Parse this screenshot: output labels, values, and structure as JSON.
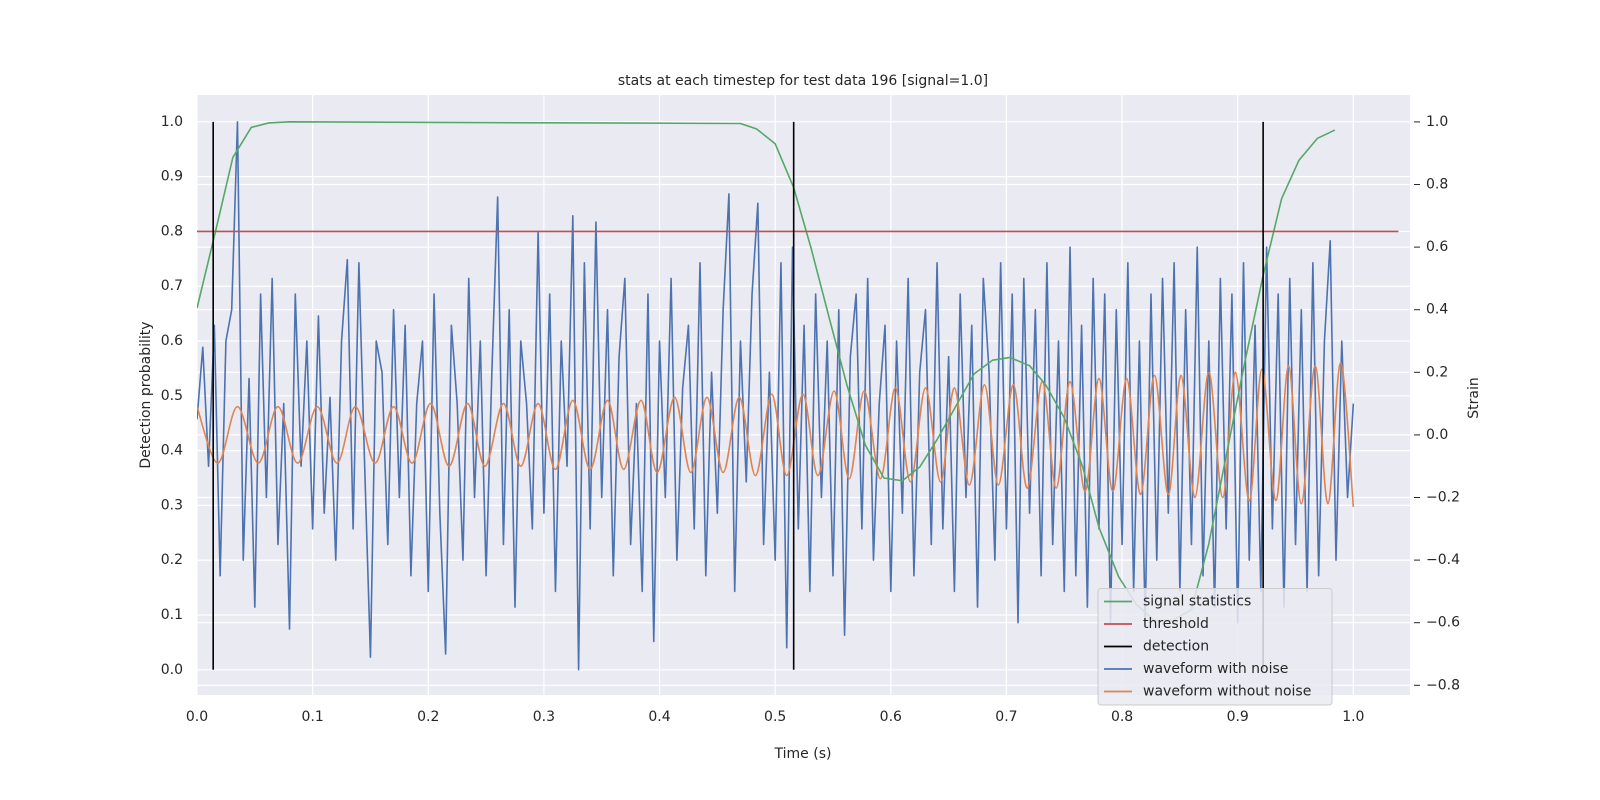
{
  "chart_data": {
    "type": "line",
    "title": "stats at each timestep for test data 196 [signal=1.0]",
    "xlabel": "Time (s)",
    "ylabel": "Detection probability",
    "y2label": "Strain",
    "xlim": [
      0,
      1.049
    ],
    "ylim": [
      -0.046,
      1.049
    ],
    "y2lim": [
      -0.831,
      1.086
    ],
    "xticks": [
      {
        "value": 0,
        "label": "0.0"
      },
      0.1,
      0.2,
      0.3,
      0.4,
      0.5,
      0.6,
      0.7,
      0.8,
      0.9,
      {
        "value": 1,
        "label": "1.0"
      }
    ],
    "yticks": [
      {
        "value": 0,
        "label": "0.0"
      },
      0.1,
      0.2,
      0.3,
      0.4,
      0.5,
      0.6,
      0.7,
      0.8,
      0.9,
      {
        "value": 1,
        "label": "1.0"
      }
    ],
    "y2ticks": [
      {
        "value": -0.8,
        "label": "−0.8"
      },
      {
        "value": -0.6,
        "label": "−0.6"
      },
      {
        "value": -0.4,
        "label": "−0.4"
      },
      {
        "value": -0.2,
        "label": "−0.2"
      },
      {
        "value": 0,
        "label": "0.0"
      },
      0.2,
      0.4,
      0.6,
      0.8,
      {
        "value": 1,
        "label": "1.0"
      }
    ],
    "grid": true,
    "legend": "lower right",
    "series": [
      {
        "name": "signal statistics",
        "color": "#55a868",
        "x": [
          0,
          0.016,
          0.031,
          0.047,
          0.062,
          0.08,
          0.47,
          0.484,
          0.5,
          0.516,
          0.531,
          0.547,
          0.562,
          0.578,
          0.594,
          0.61,
          0.625,
          0.64,
          0.656,
          0.672,
          0.688,
          0.703,
          0.72,
          0.734,
          0.75,
          0.766,
          0.78,
          0.797,
          0.812,
          0.828,
          0.844,
          0.86,
          0.875,
          0.89,
          0.906,
          0.922,
          0.938,
          0.953,
          0.969,
          0.984
        ],
        "values": [
          0.66,
          0.8,
          0.935,
          0.99,
          0.998,
          1.0,
          0.997,
          0.987,
          0.96,
          0.88,
          0.77,
          0.64,
          0.52,
          0.41,
          0.35,
          0.345,
          0.37,
          0.42,
          0.48,
          0.54,
          0.565,
          0.57,
          0.555,
          0.52,
          0.46,
          0.37,
          0.26,
          0.17,
          0.12,
          0.09,
          0.09,
          0.11,
          0.23,
          0.39,
          0.56,
          0.72,
          0.86,
          0.93,
          0.97,
          0.985
        ]
      },
      {
        "name": "threshold",
        "color": "#c44e52",
        "x": [
          0,
          1.039
        ],
        "values": [
          0.8,
          0.8
        ]
      },
      {
        "name": "detection",
        "color": "#000000",
        "style": "vlines",
        "x": [
          0.014,
          0.516,
          0.922
        ],
        "values": [
          1,
          1,
          1
        ]
      },
      {
        "name": "waveform with noise",
        "color": "#4c72b0",
        "axis": "y2",
        "x": [
          0,
          0.005,
          0.01,
          0.015,
          0.02,
          0.025,
          0.03,
          0.035,
          0.04,
          0.045,
          0.05,
          0.055,
          0.06,
          0.065,
          0.07,
          0.075,
          0.08,
          0.085,
          0.09,
          0.095,
          0.1,
          0.105,
          0.11,
          0.115,
          0.12,
          0.125,
          0.13,
          0.135,
          0.14,
          0.145,
          0.15,
          0.155,
          0.16,
          0.165,
          0.17,
          0.175,
          0.18,
          0.185,
          0.19,
          0.195,
          0.2,
          0.205,
          0.21,
          0.215,
          0.22,
          0.225,
          0.23,
          0.235,
          0.24,
          0.245,
          0.25,
          0.255,
          0.26,
          0.265,
          0.27,
          0.275,
          0.28,
          0.285,
          0.29,
          0.295,
          0.3,
          0.305,
          0.31,
          0.315,
          0.32,
          0.325,
          0.33,
          0.335,
          0.34,
          0.345,
          0.35,
          0.355,
          0.36,
          0.365,
          0.37,
          0.375,
          0.38,
          0.385,
          0.39,
          0.395,
          0.4,
          0.405,
          0.41,
          0.415,
          0.42,
          0.425,
          0.43,
          0.435,
          0.44,
          0.445,
          0.45,
          0.455,
          0.46,
          0.465,
          0.47,
          0.475,
          0.48,
          0.485,
          0.49,
          0.495,
          0.5,
          0.505,
          0.51,
          0.515,
          0.52,
          0.525,
          0.53,
          0.535,
          0.54,
          0.545,
          0.55,
          0.555,
          0.56,
          0.565,
          0.57,
          0.575,
          0.58,
          0.585,
          0.59,
          0.595,
          0.6,
          0.605,
          0.61,
          0.615,
          0.62,
          0.625,
          0.63,
          0.635,
          0.64,
          0.645,
          0.65,
          0.655,
          0.66,
          0.665,
          0.67,
          0.675,
          0.68,
          0.685,
          0.69,
          0.695,
          0.7,
          0.705,
          0.71,
          0.715,
          0.72,
          0.725,
          0.73,
          0.735,
          0.74,
          0.745,
          0.75,
          0.755,
          0.76,
          0.765,
          0.77,
          0.775,
          0.78,
          0.785,
          0.79,
          0.795,
          0.8,
          0.805,
          0.81,
          0.815,
          0.82,
          0.825,
          0.83,
          0.835,
          0.84,
          0.845,
          0.85,
          0.855,
          0.86,
          0.865,
          0.87,
          0.875,
          0.88,
          0.885,
          0.89,
          0.895,
          0.9,
          0.905,
          0.91,
          0.915,
          0.92,
          0.925,
          0.93,
          0.935,
          0.94,
          0.945,
          0.95,
          0.955,
          0.96,
          0.965,
          0.97,
          0.975,
          0.98,
          0.985,
          0.99,
          0.995,
          1.0
        ],
        "values": [
          0.05,
          0.28,
          -0.1,
          0.35,
          -0.45,
          0.3,
          0.4,
          1.0,
          -0.4,
          0.18,
          -0.55,
          0.45,
          -0.2,
          0.5,
          -0.35,
          0.1,
          -0.62,
          0.45,
          -0.1,
          0.3,
          -0.3,
          0.38,
          -0.25,
          0.12,
          -0.4,
          0.3,
          0.56,
          -0.3,
          0.55,
          -0.1,
          -0.71,
          0.3,
          0.2,
          -0.35,
          0.4,
          -0.2,
          0.35,
          -0.45,
          0.1,
          0.3,
          -0.5,
          0.45,
          -0.25,
          -0.7,
          0.35,
          0.1,
          -0.4,
          0.5,
          -0.2,
          0.3,
          -0.45,
          0.2,
          0.76,
          -0.35,
          0.4,
          -0.55,
          0.3,
          0.1,
          -0.3,
          0.65,
          -0.25,
          0.45,
          -0.5,
          0.3,
          -0.1,
          0.7,
          -0.75,
          0.55,
          -0.3,
          0.68,
          -0.2,
          0.4,
          -0.45,
          0.25,
          0.5,
          -0.35,
          0.1,
          -0.5,
          0.45,
          -0.66,
          0.3,
          -0.2,
          0.5,
          -0.4,
          0.15,
          0.35,
          -0.3,
          0.55,
          -0.45,
          0.2,
          -0.25,
          0.4,
          0.77,
          -0.5,
          0.3,
          -0.15,
          0.45,
          0.74,
          -0.35,
          0.2,
          -0.4,
          0.55,
          -0.68,
          0.6,
          -0.3,
          0.35,
          -0.5,
          0.45,
          -0.2,
          0.3,
          -0.45,
          0.4,
          -0.64,
          0.25,
          0.45,
          -0.3,
          0.5,
          -0.4,
          0.1,
          0.35,
          -0.5,
          0.3,
          -0.25,
          0.5,
          -0.45,
          0.2,
          0.4,
          -0.35,
          0.55,
          -0.3,
          0.25,
          -0.5,
          0.45,
          -0.2,
          0.35,
          -0.55,
          0.5,
          0.2,
          -0.4,
          0.55,
          -0.3,
          0.45,
          -0.6,
          0.5,
          -0.25,
          0.4,
          -0.45,
          0.55,
          -0.35,
          0.3,
          -0.5,
          0.6,
          -0.45,
          0.35,
          -0.55,
          0.5,
          -0.3,
          0.45,
          -0.6,
          0.4,
          -0.35,
          0.55,
          -0.5,
          0.3,
          -0.6,
          0.45,
          -0.4,
          0.5,
          -0.25,
          0.55,
          -0.5,
          0.4,
          -0.35,
          0.6,
          -0.45,
          0.3,
          -0.55,
          0.5,
          -0.3,
          0.45,
          -0.6,
          0.55,
          -0.4,
          0.35,
          -0.5,
          0.6,
          -0.3,
          0.45,
          -0.55,
          0.5,
          -0.35,
          0.4,
          -0.5,
          0.55,
          -0.45,
          0.3,
          0.62,
          -0.4,
          0.3,
          -0.2,
          0.1
        ]
      },
      {
        "name": "waveform without noise",
        "color": "#dd8452",
        "axis": "y2",
        "smooth": true,
        "x": [
          0,
          0.018,
          0.035,
          0.053,
          0.07,
          0.087,
          0.104,
          0.121,
          0.137,
          0.154,
          0.17,
          0.186,
          0.202,
          0.218,
          0.234,
          0.249,
          0.265,
          0.28,
          0.295,
          0.31,
          0.325,
          0.34,
          0.355,
          0.369,
          0.384,
          0.398,
          0.413,
          0.427,
          0.441,
          0.455,
          0.469,
          0.483,
          0.497,
          0.51,
          0.524,
          0.537,
          0.551,
          0.564,
          0.577,
          0.591,
          0.604,
          0.617,
          0.63,
          0.643,
          0.655,
          0.668,
          0.681,
          0.693,
          0.706,
          0.718,
          0.731,
          0.743,
          0.755,
          0.768,
          0.78,
          0.792,
          0.804,
          0.816,
          0.828,
          0.84,
          0.851,
          0.863,
          0.875,
          0.887,
          0.898,
          0.91,
          0.921,
          0.933,
          0.944,
          0.955,
          0.967,
          0.978,
          0.989,
          1.0
        ],
        "values": [
          0.09,
          -0.09,
          0.09,
          -0.09,
          0.09,
          -0.09,
          0.09,
          -0.09,
          0.09,
          -0.09,
          0.09,
          -0.09,
          0.1,
          -0.1,
          0.1,
          -0.1,
          0.1,
          -0.1,
          0.1,
          -0.11,
          0.11,
          -0.11,
          0.11,
          -0.11,
          0.11,
          -0.12,
          0.12,
          -0.12,
          0.12,
          -0.12,
          0.12,
          -0.13,
          0.13,
          -0.13,
          0.13,
          -0.13,
          0.14,
          -0.14,
          0.14,
          -0.14,
          0.15,
          -0.15,
          0.15,
          -0.15,
          0.15,
          -0.16,
          0.16,
          -0.16,
          0.16,
          -0.17,
          0.17,
          -0.17,
          0.17,
          -0.18,
          0.18,
          -0.18,
          0.18,
          -0.19,
          0.19,
          -0.19,
          0.19,
          -0.2,
          0.2,
          -0.2,
          0.2,
          -0.21,
          0.21,
          -0.21,
          0.22,
          -0.22,
          0.22,
          -0.22,
          0.23,
          -0.23
        ]
      }
    ]
  }
}
